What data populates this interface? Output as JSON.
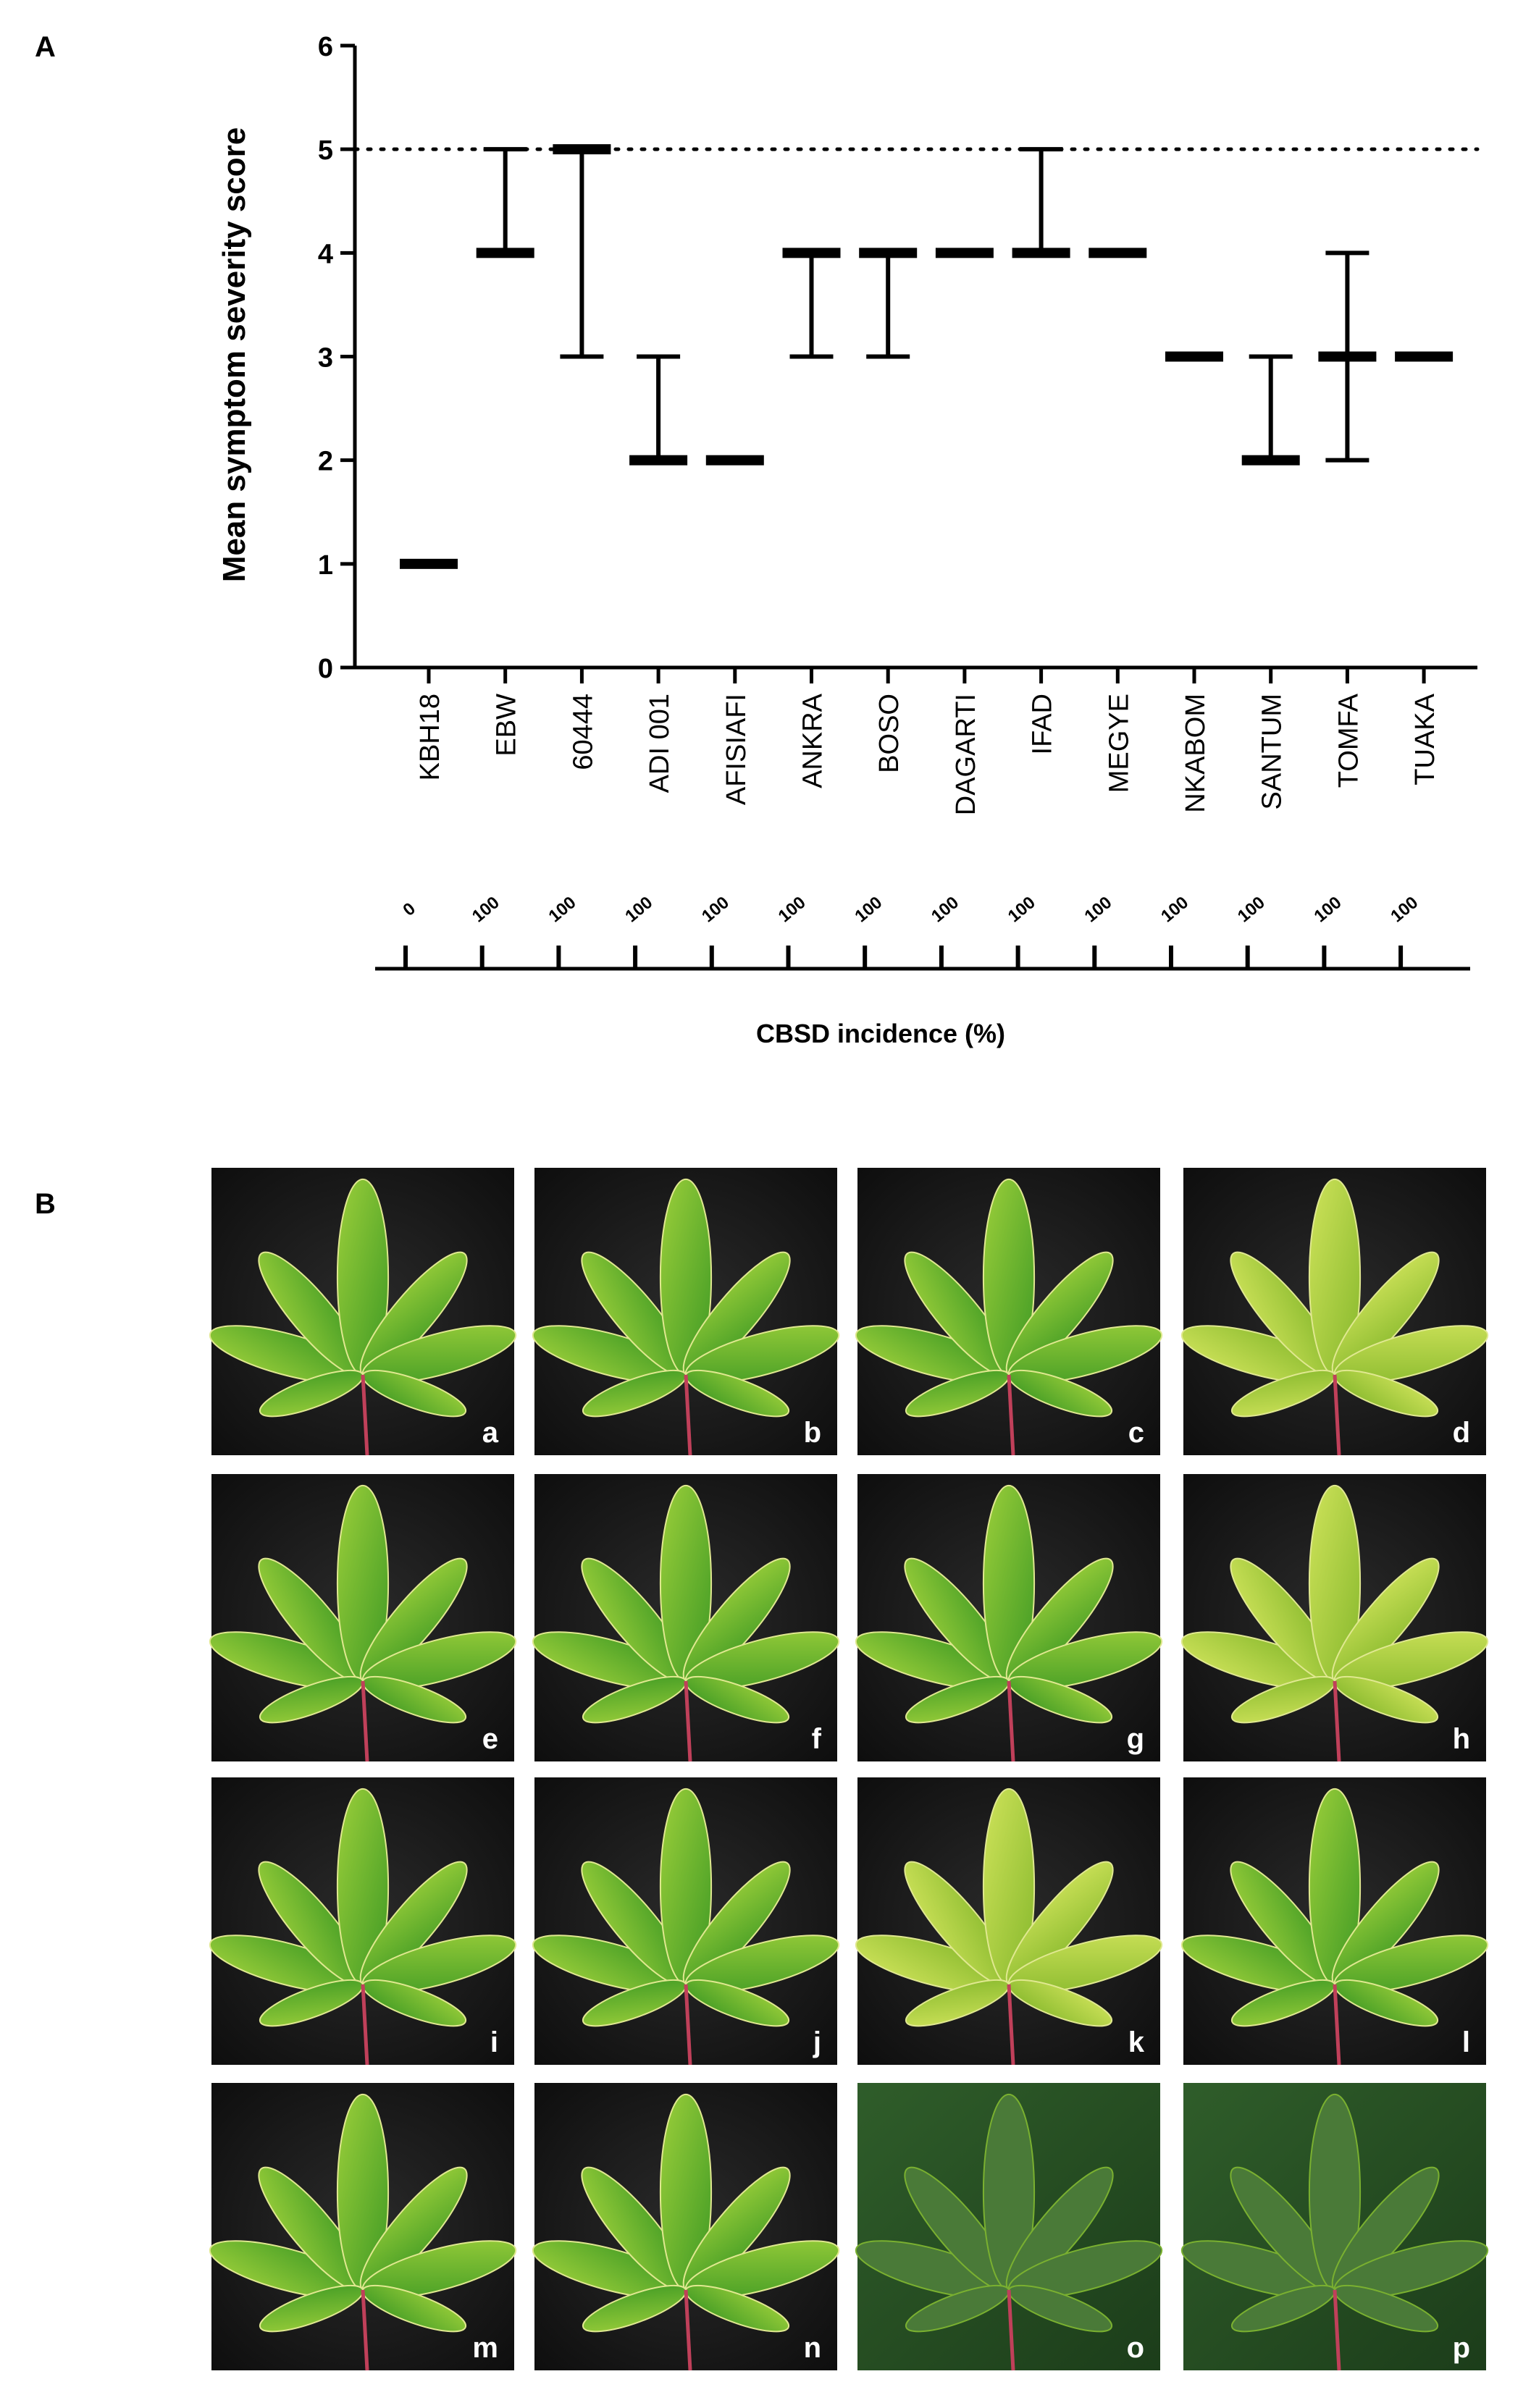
{
  "panel_labels": [
    "A",
    "B"
  ],
  "chart_data": {
    "type": "median-range",
    "y_label": "Mean symptom severity score",
    "categories": [
      "KBH18",
      "EBW",
      "60444",
      "ADI 001",
      "AFISIAFI",
      "ANKRA",
      "BOSO",
      "DAGARTI",
      "IFAD",
      "MEGYE",
      "NKABOM",
      "SANTUM",
      "TOMFA",
      "TUAKA"
    ],
    "values": [
      1,
      4,
      5,
      2,
      2,
      4,
      4,
      4,
      4,
      4,
      3,
      2,
      3,
      3
    ],
    "low": [
      1,
      4,
      3,
      2,
      2,
      3,
      3,
      4,
      4,
      4,
      3,
      2,
      2,
      3
    ],
    "high": [
      1,
      5,
      5,
      3,
      2,
      4,
      4,
      4,
      5,
      4,
      3,
      3,
      4,
      3
    ],
    "reference_line": 5,
    "ylim": [
      0,
      6
    ],
    "yticks": [
      0,
      1,
      2,
      3,
      4,
      5,
      6
    ],
    "color": "#000000",
    "incidence": [
      0,
      100,
      100,
      100,
      100,
      100,
      100,
      100,
      100,
      100,
      100,
      100,
      100,
      100
    ],
    "incidence_label": "CBSD incidence (%)"
  },
  "photos": {
    "labels": [
      "a",
      "b",
      "c",
      "d",
      "e",
      "f",
      "g",
      "h",
      "i",
      "j",
      "k",
      "l",
      "m",
      "n",
      "o",
      "p"
    ]
  }
}
